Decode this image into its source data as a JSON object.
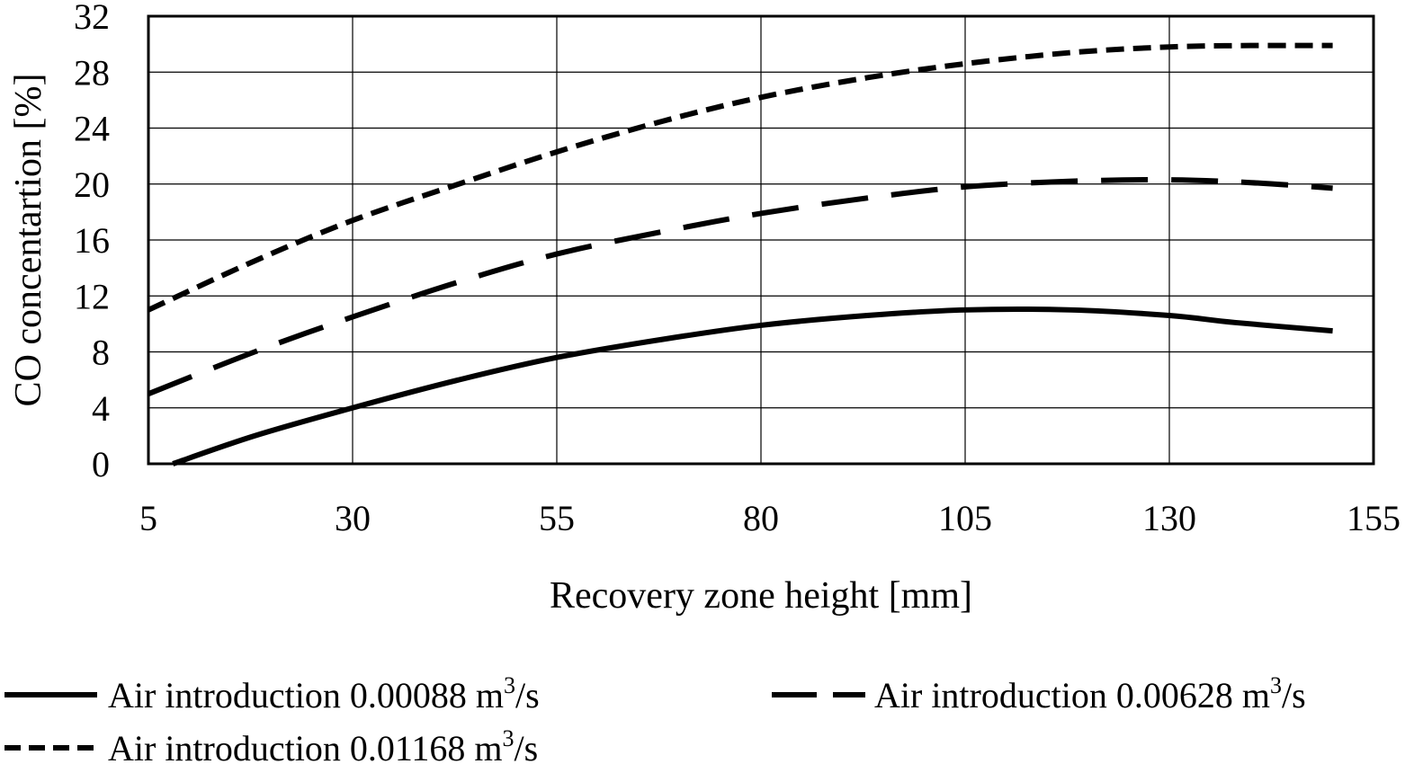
{
  "chart_data": {
    "type": "line",
    "xlabel": "Recovery zone height [mm]",
    "ylabel": "CO concentartion [%]",
    "xlim": [
      5,
      155
    ],
    "ylim": [
      0,
      32
    ],
    "xticks": [
      "5",
      "30",
      "55",
      "80",
      "105",
      "130",
      "155"
    ],
    "yticks": [
      "0",
      "4",
      "8",
      "12",
      "16",
      "20",
      "24",
      "28",
      "32"
    ],
    "grid": true,
    "legend_position": "bottom",
    "series": [
      {
        "name": "Air introduction 0.00088 m3/s",
        "label_text": "Air introduction 0.00088 m",
        "label_sup": "3",
        "label_unit": "/s",
        "style": "solid",
        "x": [
          8,
          18,
          30,
          43,
          55,
          68,
          80,
          93,
          105,
          118,
          130,
          138,
          150
        ],
        "y": [
          0,
          2.0,
          4.0,
          6.0,
          7.6,
          8.9,
          9.9,
          10.6,
          11.0,
          11.0,
          10.6,
          10.1,
          9.5
        ]
      },
      {
        "name": "Air introduction 0.00628 m3/s",
        "label_text": "Air introduction 0.00628 m",
        "label_sup": "3",
        "label_unit": "/s",
        "style": "long-dash",
        "x": [
          5,
          18,
          30,
          43,
          55,
          68,
          80,
          93,
          105,
          118,
          130,
          140,
          150
        ],
        "y": [
          5.0,
          8.0,
          10.5,
          13.0,
          15.0,
          16.6,
          17.9,
          19.0,
          19.8,
          20.2,
          20.3,
          20.1,
          19.7
        ]
      },
      {
        "name": "Air introduction 0.01168 m3/s",
        "label_text": "Air introduction 0.01168 m",
        "label_sup": "3",
        "label_unit": "/s",
        "style": "short-dash",
        "x": [
          5,
          18,
          30,
          43,
          55,
          68,
          80,
          93,
          105,
          118,
          130,
          140,
          150
        ],
        "y": [
          11.0,
          14.5,
          17.4,
          20.0,
          22.3,
          24.5,
          26.2,
          27.6,
          28.6,
          29.4,
          29.8,
          29.9,
          29.9
        ]
      }
    ]
  }
}
